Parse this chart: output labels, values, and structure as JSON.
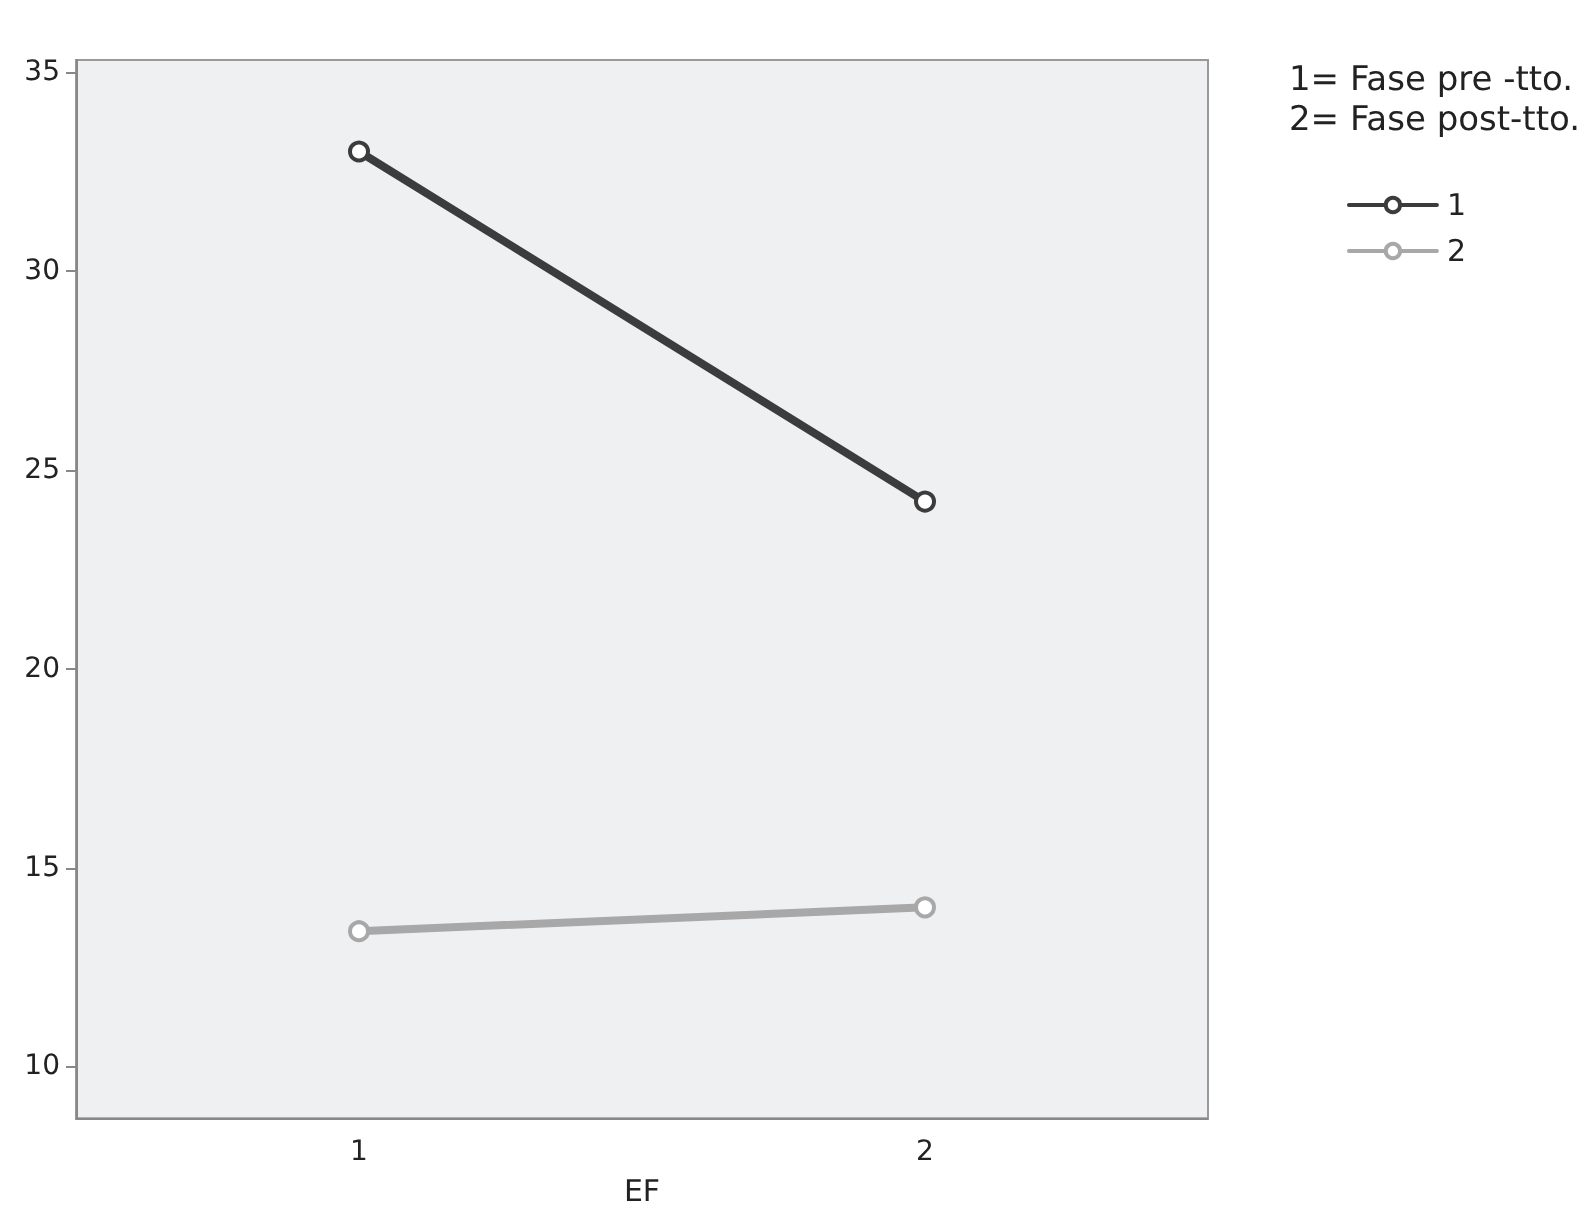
{
  "chart_data": {
    "type": "line",
    "xlabel": "EF",
    "legend_title": "1= Fase pre -tto.\n2= Fase post-tto.",
    "categories": [
      "1",
      "2"
    ],
    "series": [
      {
        "name": "1",
        "color": "#3c3c3c",
        "values": [
          33.0,
          24.2
        ]
      },
      {
        "name": "2",
        "color": "#a8a8a8",
        "values": [
          13.4,
          14.0
        ]
      }
    ],
    "ylim": [
      8.7,
      35.3
    ],
    "yticks": [
      10,
      15,
      20,
      25,
      30,
      35
    ],
    "grid": false,
    "legend": "top right",
    "marker": "circle",
    "line_style": "solid"
  }
}
